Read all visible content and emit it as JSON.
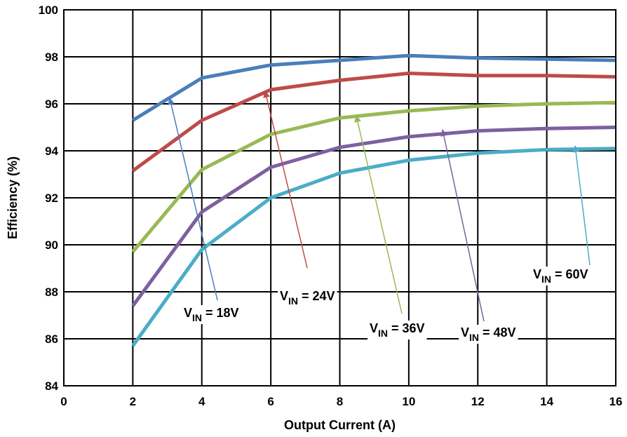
{
  "chart_data": {
    "type": "line",
    "title": "",
    "xlabel": "Output Current (A)",
    "ylabel": "Efficiency (%)",
    "xlim": [
      0,
      16
    ],
    "ylim": [
      84,
      100
    ],
    "xticks": [
      "0",
      "2",
      "4",
      "6",
      "8",
      "10",
      "12",
      "14",
      "16"
    ],
    "yticks": [
      "84",
      "86",
      "88",
      "90",
      "92",
      "94",
      "96",
      "98",
      "100"
    ],
    "grid": true,
    "legend": "none",
    "series": [
      {
        "name": "V_IN = 18V",
        "label_main": "V",
        "label_sub": "IN",
        "label_rest": " = 18V",
        "color": "#4a7ebb",
        "x": [
          2,
          4,
          6,
          8,
          10,
          12,
          14,
          16
        ],
        "y": [
          95.3,
          97.1,
          97.65,
          97.85,
          98.05,
          97.95,
          97.9,
          97.85
        ]
      },
      {
        "name": "V_IN = 24V",
        "label_main": "V",
        "label_sub": "IN",
        "label_rest": " = 24V",
        "color": "#be4b48",
        "x": [
          2,
          4,
          6,
          8,
          10,
          12,
          14,
          16
        ],
        "y": [
          93.15,
          95.3,
          96.6,
          97.0,
          97.3,
          97.2,
          97.2,
          97.15
        ]
      },
      {
        "name": "V_IN = 36V",
        "label_main": "V",
        "label_sub": "IN",
        "label_rest": " = 36V",
        "color": "#98b954",
        "x": [
          2,
          4,
          6,
          8,
          10,
          12,
          14,
          16
        ],
        "y": [
          89.7,
          93.2,
          94.7,
          95.4,
          95.7,
          95.9,
          96.0,
          96.05
        ]
      },
      {
        "name": "V_IN = 48V",
        "label_main": "V",
        "label_sub": "IN",
        "label_rest": " = 48V",
        "color": "#7d60a0",
        "x": [
          2,
          4,
          6,
          8,
          10,
          12,
          14,
          16
        ],
        "y": [
          87.4,
          91.4,
          93.3,
          94.15,
          94.6,
          94.85,
          94.95,
          95.0
        ]
      },
      {
        "name": "V_IN = 60V",
        "label_main": "V",
        "label_sub": "IN",
        "label_rest": " = 60V",
        "color": "#4bacc6",
        "x": [
          2,
          4,
          6,
          8,
          10,
          12,
          14,
          16
        ],
        "y": [
          85.7,
          89.8,
          92.0,
          93.05,
          93.6,
          93.9,
          94.05,
          94.1
        ]
      }
    ]
  }
}
